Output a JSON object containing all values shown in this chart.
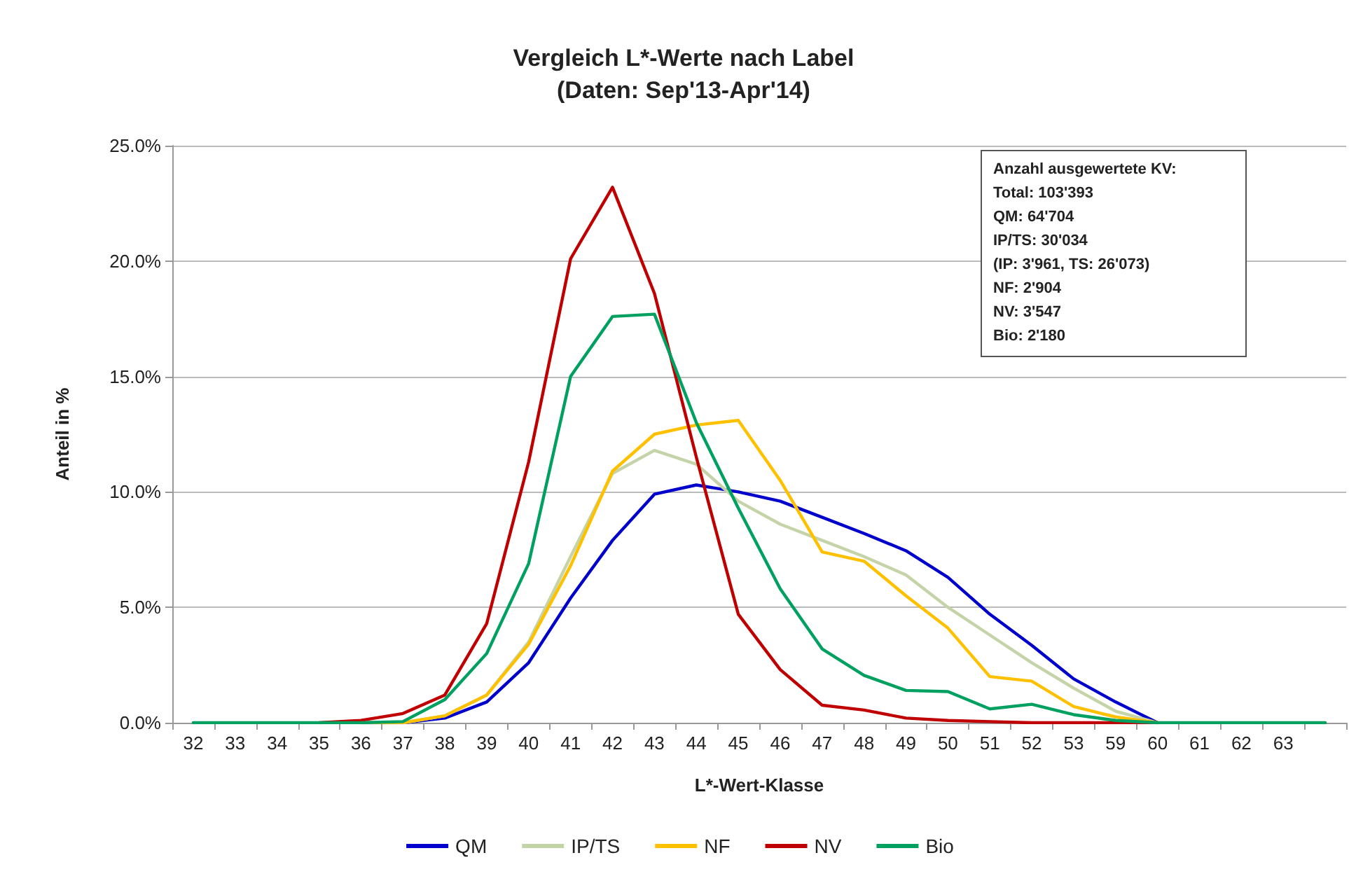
{
  "chart_data": {
    "type": "line",
    "title": "Vergleich L*-Werte nach Label",
    "subtitle": "(Daten: Sep'13-Apr'14)",
    "xlabel": "L*-Wert-Klasse",
    "ylabel": "Anteil in %",
    "categories": [
      "32",
      "33",
      "34",
      "35",
      "36",
      "37",
      "38",
      "39",
      "40",
      "41",
      "42",
      "43",
      "44",
      "45",
      "46",
      "47",
      "48",
      "49",
      "50",
      "51",
      "52",
      "53",
      "59",
      "60",
      "61",
      "62",
      "63",
      null
    ],
    "series": [
      {
        "name": "QM",
        "color": "#0000cc",
        "values": [
          null,
          null,
          null,
          null,
          0,
          0,
          0.2,
          0.9,
          2.6,
          5.4,
          7.9,
          9.9,
          10.3,
          10.0,
          9.6,
          8.9,
          8.2,
          7.45,
          6.3,
          4.7,
          3.35,
          1.9,
          0.9,
          0,
          null,
          null,
          null,
          null
        ]
      },
      {
        "name": "IP/TS",
        "color": "#c4d4a8",
        "values": [
          null,
          null,
          null,
          null,
          0,
          0,
          0.3,
          1.2,
          3.5,
          7.2,
          10.8,
          11.8,
          11.2,
          9.6,
          8.6,
          7.9,
          7.2,
          6.4,
          5.0,
          3.8,
          2.6,
          1.5,
          0.5,
          0,
          null,
          null,
          null,
          null
        ]
      },
      {
        "name": "NF",
        "color": "#ffc000",
        "values": [
          null,
          null,
          null,
          null,
          0,
          0,
          0.3,
          1.2,
          3.4,
          6.8,
          10.9,
          12.5,
          12.9,
          13.1,
          10.5,
          7.4,
          7.0,
          5.5,
          4.1,
          2.0,
          1.8,
          0.7,
          0.25,
          0,
          null,
          null,
          null,
          null
        ]
      },
      {
        "name": "NV",
        "color": "#c00000",
        "values": [
          null,
          null,
          null,
          0,
          0.1,
          0.4,
          1.2,
          4.3,
          11.3,
          20.1,
          23.2,
          18.6,
          11.5,
          4.7,
          2.3,
          0.76,
          0.55,
          0.2,
          0.1,
          0.05,
          0,
          0,
          0,
          0,
          null,
          null,
          null,
          null
        ]
      },
      {
        "name": "Bio",
        "color": "#00a060",
        "values": [
          0,
          0,
          0,
          0,
          0,
          0.05,
          1.0,
          3.0,
          6.9,
          15.0,
          17.6,
          17.7,
          13.0,
          9.3,
          5.8,
          3.2,
          2.05,
          1.4,
          1.35,
          0.6,
          0.8,
          0.35,
          0.1,
          0,
          0,
          0,
          0,
          0
        ]
      }
    ],
    "ylim": [
      0,
      25
    ],
    "yticks": [
      {
        "value": 0,
        "label": "0.0%"
      },
      {
        "value": 5,
        "label": "5.0%"
      },
      {
        "value": 10,
        "label": "10.0%"
      },
      {
        "value": 15,
        "label": "15.0%"
      },
      {
        "value": 20,
        "label": "20.0%"
      },
      {
        "value": 25,
        "label": "25.0%"
      }
    ],
    "grid": "y",
    "legend": "bottom",
    "marker": "none",
    "line_style": "solid",
    "annotations": [
      "Anzahl ausgewertete KV:",
      "Total: 103'393",
      "QM: 64'704",
      "IP/TS: 30'034",
      "(IP: 3'961, TS: 26'073)",
      "NF: 2'904",
      "NV: 3'547",
      "Bio: 2'180"
    ]
  }
}
